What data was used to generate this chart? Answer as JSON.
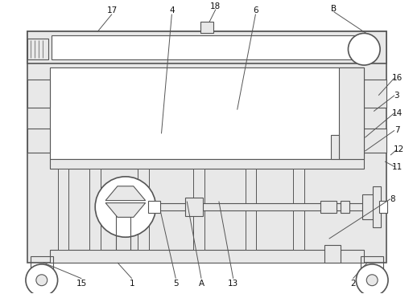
{
  "bg_color": "#ffffff",
  "line_color": "#555555",
  "fill_light": "#e8e8e8",
  "fill_white": "#ffffff",
  "label_color": "#111111",
  "figsize": [
    5.13,
    3.66
  ],
  "dpi": 100
}
